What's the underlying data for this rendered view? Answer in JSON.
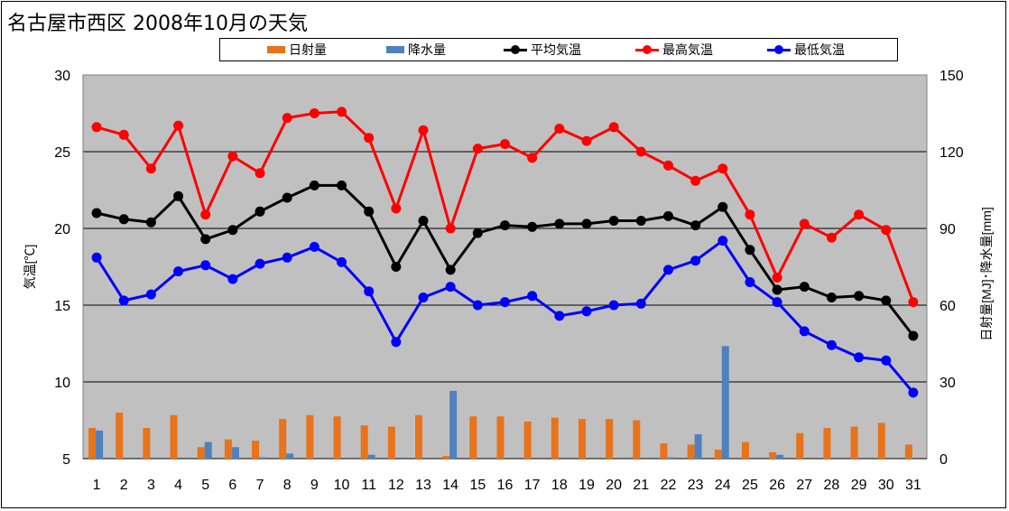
{
  "title": "名古屋市西区  2008年10月の天気",
  "legend": {
    "solar": "日射量",
    "precip": "降水量",
    "avg": "平均気温",
    "max": "最高気温",
    "min": "最低気温"
  },
  "colors": {
    "solar": "#E8731A",
    "precip": "#4F81BD",
    "avg": "#000000",
    "max": "#FF0000",
    "min": "#0000FF",
    "plot_bg": "#C0C0C0"
  },
  "chart_data": {
    "type": "line",
    "title": "名古屋市西区  2008年10月の天気",
    "xlabel": "",
    "ylabel": "気温[℃]",
    "y2label": "日射量[MJ]･降水量[mm]",
    "ylim": [
      5,
      30
    ],
    "y2lim": [
      0,
      150
    ],
    "yticks": [
      5,
      10,
      15,
      20,
      25,
      30
    ],
    "y2ticks": [
      0,
      30,
      60,
      90,
      120,
      150
    ],
    "grid": true,
    "legend_position": "top",
    "categories": [
      "1",
      "2",
      "3",
      "4",
      "5",
      "6",
      "7",
      "8",
      "9",
      "10",
      "11",
      "12",
      "13",
      "14",
      "15",
      "16",
      "17",
      "18",
      "19",
      "20",
      "21",
      "22",
      "23",
      "24",
      "25",
      "26",
      "27",
      "28",
      "29",
      "30",
      "31"
    ],
    "series": [
      {
        "name": "日射量",
        "kind": "bar",
        "axis": "right",
        "values": [
          12,
          18,
          12,
          17,
          4.5,
          7.5,
          7,
          15.5,
          17,
          16.5,
          13,
          12.5,
          17,
          1,
          16.5,
          16.5,
          14.5,
          16,
          15.5,
          15.5,
          15,
          6,
          5.5,
          3.5,
          6.5,
          2.5,
          10,
          12,
          12.5,
          14,
          5.5
        ]
      },
      {
        "name": "降水量",
        "kind": "bar",
        "axis": "right",
        "values": [
          11,
          0,
          0,
          0,
          6.5,
          4.5,
          0.5,
          2,
          0,
          0,
          1.5,
          0,
          0,
          26.5,
          0,
          0,
          0,
          0,
          0,
          0,
          0,
          0.5,
          9.5,
          44,
          0,
          1.5,
          0,
          0,
          0,
          0,
          0
        ]
      },
      {
        "name": "平均気温",
        "kind": "line",
        "axis": "left",
        "values": [
          21.0,
          20.6,
          20.4,
          22.1,
          19.3,
          19.9,
          21.1,
          22.0,
          22.8,
          22.8,
          21.1,
          17.5,
          20.5,
          17.3,
          19.7,
          20.2,
          20.1,
          20.3,
          20.3,
          20.5,
          20.5,
          20.8,
          20.2,
          21.4,
          18.6,
          16.0,
          16.2,
          15.5,
          15.6,
          15.3,
          13.0
        ]
      },
      {
        "name": "最高気温",
        "kind": "line",
        "axis": "left",
        "values": [
          26.6,
          26.1,
          23.9,
          26.7,
          20.9,
          24.7,
          23.6,
          27.2,
          27.5,
          27.6,
          25.9,
          21.3,
          26.4,
          20.0,
          25.2,
          25.5,
          24.6,
          26.5,
          25.7,
          26.6,
          25.0,
          24.1,
          23.1,
          23.9,
          20.9,
          16.8,
          20.3,
          19.4,
          20.9,
          19.9,
          15.2
        ]
      },
      {
        "name": "最低気温",
        "kind": "line",
        "axis": "left",
        "values": [
          18.1,
          15.3,
          15.7,
          17.2,
          17.6,
          16.7,
          17.7,
          18.1,
          18.8,
          17.8,
          15.9,
          12.6,
          15.5,
          16.2,
          15.0,
          15.2,
          15.6,
          14.3,
          14.6,
          15.0,
          15.1,
          17.3,
          17.9,
          19.2,
          16.5,
          15.2,
          13.3,
          12.4,
          11.6,
          11.4,
          9.3
        ]
      }
    ]
  }
}
